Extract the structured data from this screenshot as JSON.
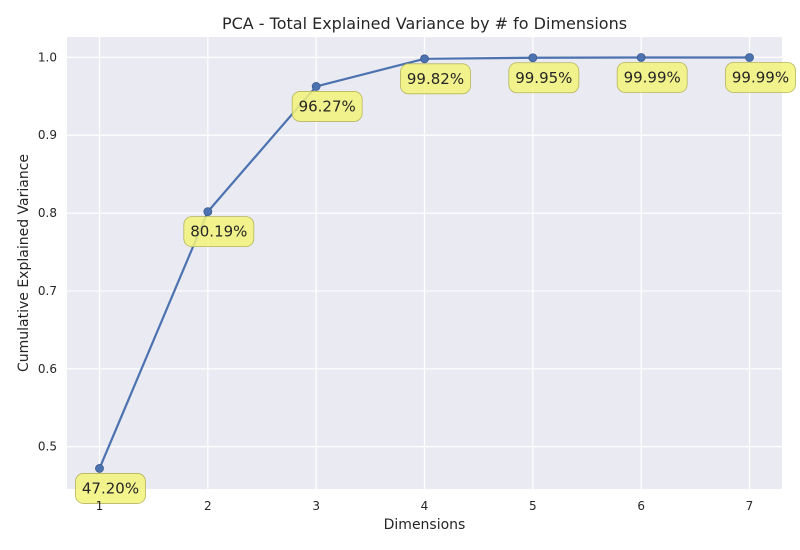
{
  "chart_data": {
    "type": "line",
    "title": "PCA - Total Explained Variance by # fo Dimensions",
    "xlabel": "Dimensions",
    "ylabel": "Cumulative Explained Variance",
    "x": [
      1,
      2,
      3,
      4,
      5,
      6,
      7
    ],
    "values": [
      0.472,
      0.8019,
      0.9627,
      0.9982,
      0.9995,
      0.9999,
      0.9999
    ],
    "point_labels": [
      "47.20%",
      "80.19%",
      "96.27%",
      "99.82%",
      "99.95%",
      "99.99%",
      "99.99%"
    ],
    "x_ticks": [
      "1",
      "2",
      "3",
      "4",
      "5",
      "6",
      "7"
    ],
    "y_ticks": [
      "0.5",
      "0.6",
      "0.7",
      "0.8",
      "0.9",
      "1.0"
    ],
    "y_tick_values": [
      0.5,
      0.6,
      0.7,
      0.8,
      0.9,
      1.0
    ],
    "xlim": [
      0.7,
      7.3
    ],
    "ylim": [
      0.4456,
      1.0262
    ],
    "grid": true,
    "colors": {
      "background": "#eaeaf2",
      "grid": "#ffffff",
      "line": "#4c72b0",
      "label_box": "#f3f37a",
      "label_border": "#b5b55a"
    }
  }
}
